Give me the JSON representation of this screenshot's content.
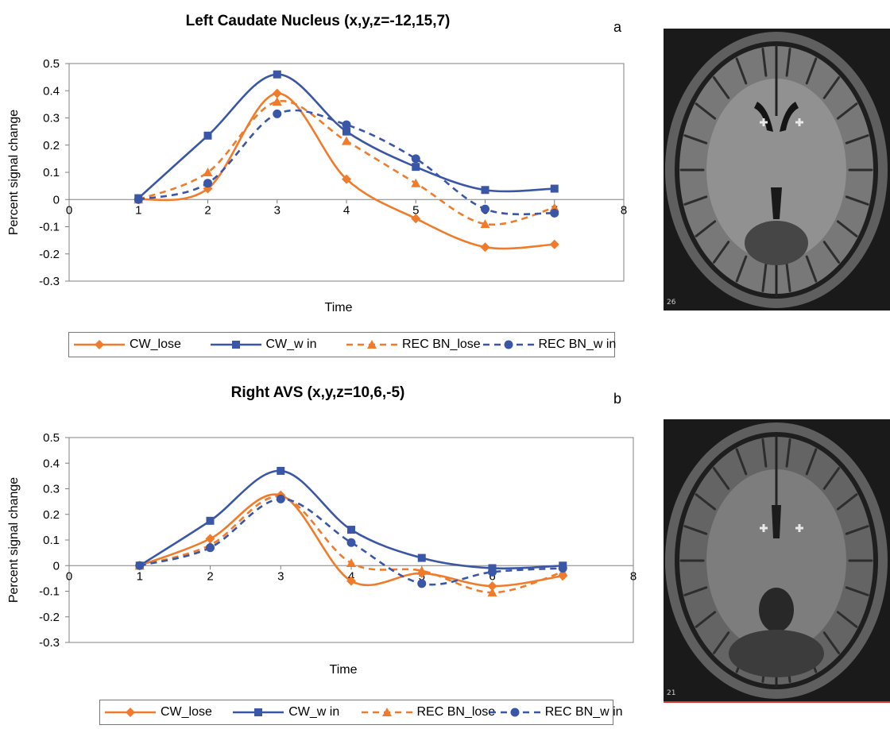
{
  "chart_data": [
    {
      "type": "line",
      "panel": "a",
      "title": "Left Caudate Nucleus (x,y,z=-12,15,7)",
      "panel_letter": "a",
      "xlabel": "Time",
      "ylabel": "Percent signal change",
      "xlim": [
        0,
        8
      ],
      "ylim": [
        -0.3,
        0.5
      ],
      "x_ticks": [
        "0",
        "1",
        "2",
        "3",
        "4",
        "5",
        "6",
        "7",
        "8"
      ],
      "y_ticks": [
        "0.5",
        "0.4",
        "0.3",
        "0.2",
        "0.1",
        "0",
        "-0.1",
        "-0.2",
        "-0.3"
      ],
      "x": [
        1,
        2,
        3,
        4,
        5,
        6,
        7
      ],
      "series": [
        {
          "name": "CW_lose",
          "values": [
            0.0,
            0.04,
            0.39,
            0.075,
            -0.07,
            -0.175,
            -0.165
          ],
          "color": "#f07b2a",
          "dash": false,
          "marker": "diamond"
        },
        {
          "name": "CW_w in",
          "values": [
            0.005,
            0.235,
            0.46,
            0.25,
            0.12,
            0.035,
            0.04
          ],
          "color": "#3a56a6",
          "dash": false,
          "marker": "square"
        },
        {
          "name": "REC BN_lose",
          "values": [
            0.0,
            0.1,
            0.36,
            0.215,
            0.06,
            -0.09,
            -0.03
          ],
          "color": "#f07b2a",
          "dash": true,
          "marker": "triangle"
        },
        {
          "name": "REC BN_w in",
          "values": [
            0.0,
            0.06,
            0.315,
            0.275,
            0.15,
            -0.035,
            -0.05
          ],
          "color": "#3a56a6",
          "dash": true,
          "marker": "circle"
        }
      ],
      "grid": false,
      "legend_position": "bottom"
    },
    {
      "type": "line",
      "panel": "b",
      "title": "Right AVS (x,y,z=10,6,-5)",
      "panel_letter": "b",
      "xlabel": "Time",
      "ylabel": "Percent signal change",
      "xlim": [
        0,
        8
      ],
      "ylim": [
        -0.3,
        0.5
      ],
      "x_ticks": [
        "0",
        "1",
        "2",
        "3",
        "4",
        "5",
        "6",
        "7",
        "8"
      ],
      "y_ticks": [
        "0.5",
        "0.4",
        "0.3",
        "0.2",
        "0.1",
        "0",
        "-0.1",
        "-0.2",
        "-0.3"
      ],
      "x": [
        1,
        2,
        3,
        4,
        5,
        6,
        7
      ],
      "series": [
        {
          "name": "CW_lose",
          "values": [
            0.0,
            0.105,
            0.275,
            -0.06,
            -0.03,
            -0.08,
            -0.04
          ],
          "color": "#f07b2a",
          "dash": false,
          "marker": "diamond"
        },
        {
          "name": "CW_w in",
          "values": [
            0.0,
            0.175,
            0.37,
            0.14,
            0.03,
            -0.01,
            0.0
          ],
          "color": "#3a56a6",
          "dash": false,
          "marker": "square"
        },
        {
          "name": "REC BN_lose",
          "values": [
            0.0,
            0.08,
            0.27,
            0.01,
            -0.02,
            -0.105,
            -0.025
          ],
          "color": "#f07b2a",
          "dash": true,
          "marker": "triangle"
        },
        {
          "name": "REC BN_w in",
          "values": [
            0.0,
            0.07,
            0.26,
            0.09,
            -0.07,
            -0.025,
            -0.01
          ],
          "color": "#3a56a6",
          "dash": true,
          "marker": "circle"
        }
      ],
      "grid": false,
      "legend_position": "bottom"
    }
  ],
  "images": [
    {
      "slice_number": "26"
    },
    {
      "slice_number": "21"
    }
  ]
}
